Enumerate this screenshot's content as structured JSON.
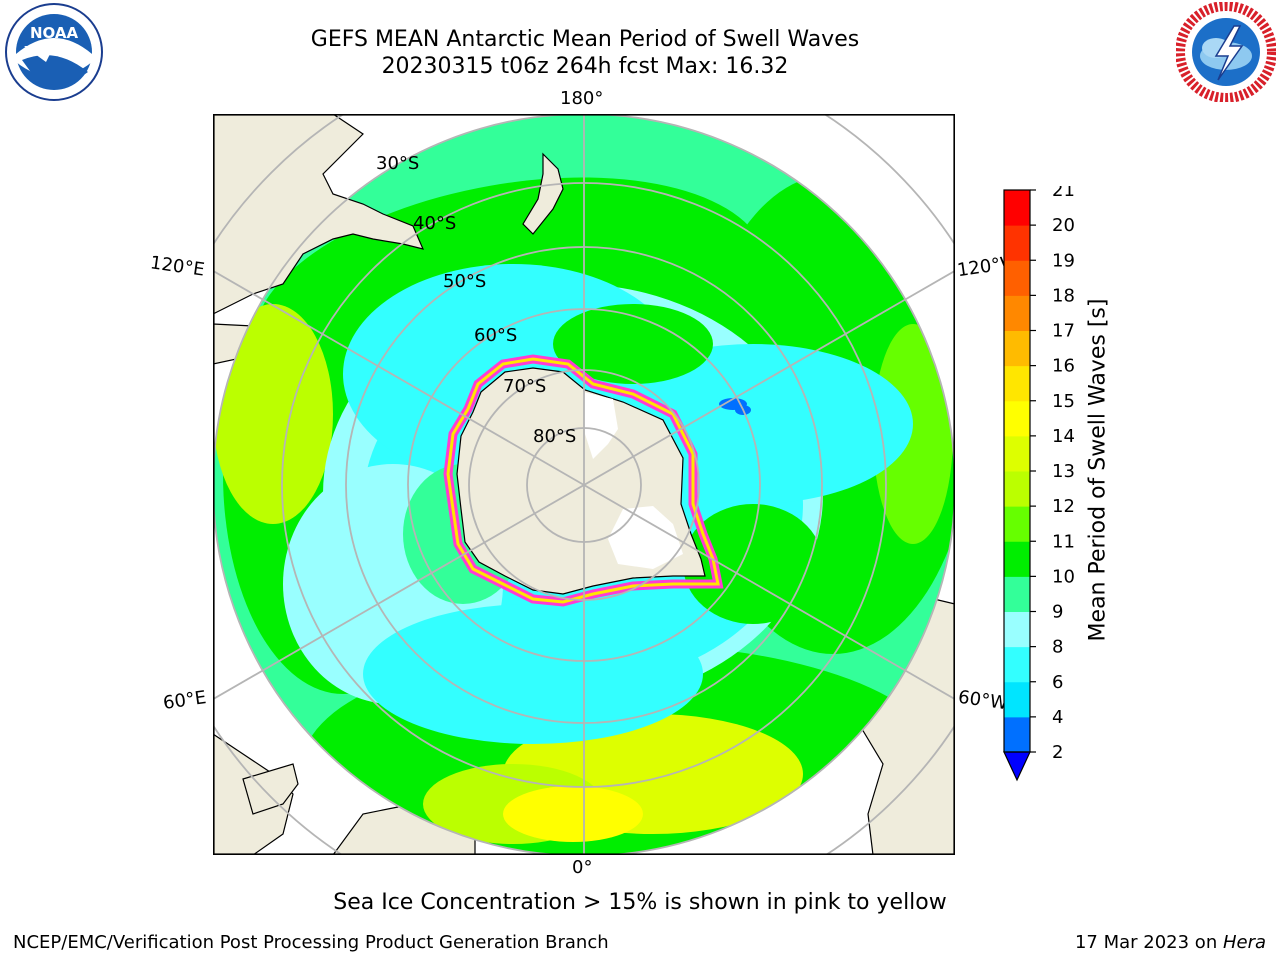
{
  "header": {
    "title_line1": "GEFS MEAN Antarctic Mean Period of Swell Waves",
    "title_line2": "20230315 t06z 264h fcst   Max: 16.32"
  },
  "logos": {
    "left": "noaa-logo",
    "right": "nws-logo",
    "left_text": "NOAA",
    "right_ring_text": "NATIONAL WEATHER SERVICE"
  },
  "map": {
    "projection": "south-polar-stereographic",
    "meridian_labels": [
      "180°",
      "120°E",
      "120°W",
      "60°E",
      "60°W",
      "0°"
    ],
    "parallel_labels": [
      "30°S",
      "40°S",
      "50°S",
      "60°S",
      "70°S",
      "80°S"
    ],
    "colors": {
      "land": "#efecdc",
      "grid": "#b5b5b5",
      "ice_pink": "#ff3cd2"
    }
  },
  "colorbar": {
    "label": "Mean Period of Swell Waves [s]",
    "ticks": [
      "2",
      "4",
      "6",
      "8",
      "9",
      "10",
      "11",
      "12",
      "13",
      "14",
      "15",
      "16",
      "17",
      "18",
      "19",
      "20",
      "21"
    ],
    "bin_colors": [
      "#0070ff",
      "#00e5ff",
      "#33ffff",
      "#99ffff",
      "#33ff99",
      "#00ee00",
      "#66ff00",
      "#bbff00",
      "#ddff00",
      "#ffff00",
      "#ffe600",
      "#ffbb00",
      "#ff8800",
      "#ff6000",
      "#ff3300",
      "#ff0000"
    ],
    "extend_color": "#0000ff"
  },
  "footer": {
    "note": "Sea Ice Concentration > 15% is shown in pink to yellow",
    "credit": "NCEP/EMC/Verification Post Processing Product Generation Branch",
    "date_prefix": "17 Mar 2023 on ",
    "date_machine": "Hera"
  }
}
